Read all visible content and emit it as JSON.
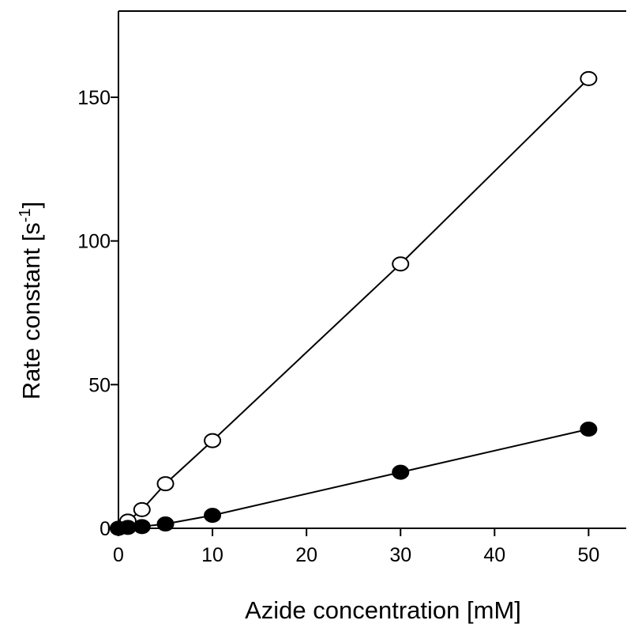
{
  "chart_data": {
    "type": "scatter",
    "xlabel": "Azide concentration [mM]",
    "ylabel": {
      "text": "Rate constant [s",
      "superscript": "-1",
      "closing": "]"
    },
    "xlim": [
      0,
      54
    ],
    "ylim": [
      0,
      180
    ],
    "x_ticks": [
      0,
      10,
      20,
      30,
      40,
      50
    ],
    "x_tick_labels": [
      "0",
      "10",
      "20",
      "30",
      "40",
      "50"
    ],
    "y_ticks": [
      0,
      50,
      100,
      150
    ],
    "y_tick_labels": [
      "0",
      "50",
      "100",
      "150"
    ],
    "grid": false,
    "legend": "none",
    "series": [
      {
        "marker": "open-circle",
        "x": [
          0,
          1,
          2.5,
          5,
          10,
          30,
          50
        ],
        "y": [
          0,
          2.5,
          6.5,
          15.5,
          30.5,
          92,
          156.5
        ],
        "fit_line": true
      },
      {
        "marker": "filled-circle",
        "x": [
          0,
          1,
          2.5,
          5,
          10,
          30,
          50
        ],
        "y": [
          0,
          0.3,
          0.6,
          1.5,
          4.5,
          19.5,
          34.5
        ],
        "fit_line": true
      }
    ]
  }
}
